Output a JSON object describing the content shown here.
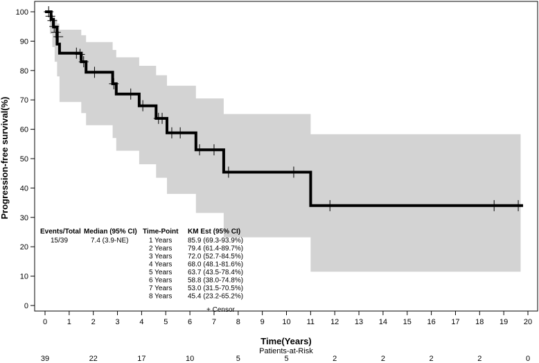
{
  "chart_data": {
    "type": "line",
    "subtype": "kaplan-meier",
    "xlabel": "Time(Years)",
    "ylabel": "Progression-free survival(%)",
    "xlim": [
      0,
      20
    ],
    "ylim": [
      0,
      100
    ],
    "x_ticks": [
      0,
      1,
      2,
      3,
      4,
      5,
      6,
      7,
      8,
      9,
      10,
      11,
      12,
      13,
      14,
      15,
      16,
      17,
      18,
      19,
      20
    ],
    "y_ticks": [
      0,
      10,
      20,
      30,
      40,
      50,
      60,
      70,
      80,
      90,
      100
    ],
    "grid": false,
    "survival_steps": [
      [
        0,
        100
      ],
      [
        0.25,
        97.4
      ],
      [
        0.35,
        94.8
      ],
      [
        0.5,
        89.0
      ],
      [
        0.6,
        85.9
      ],
      [
        1.5,
        83.0
      ],
      [
        1.7,
        79.4
      ],
      [
        2.8,
        75.5
      ],
      [
        2.95,
        72.0
      ],
      [
        3.9,
        68.0
      ],
      [
        4.6,
        63.7
      ],
      [
        5.05,
        58.8
      ],
      [
        6.25,
        53.0
      ],
      [
        7.4,
        45.4
      ],
      [
        11.0,
        34.0
      ],
      [
        19.8,
        34.0
      ]
    ],
    "ci_band": [
      [
        0,
        100,
        100
      ],
      [
        0.2,
        100,
        92.5
      ],
      [
        0.3,
        98.5,
        88
      ],
      [
        0.4,
        97.5,
        83
      ],
      [
        0.5,
        96,
        78
      ],
      [
        0.6,
        93.9,
        69.3
      ],
      [
        1.5,
        92,
        65.5
      ],
      [
        1.7,
        89.7,
        61.4
      ],
      [
        2.8,
        87,
        57
      ],
      [
        2.95,
        84.5,
        52.7
      ],
      [
        3.9,
        81.6,
        48.1
      ],
      [
        4.6,
        78.4,
        43.5
      ],
      [
        5.05,
        74.8,
        38.0
      ],
      [
        6.25,
        70.5,
        31.5
      ],
      [
        7.4,
        65.2,
        23.2
      ],
      [
        11.0,
        58.3,
        11.5
      ],
      [
        19.7,
        58.3,
        11.5
      ]
    ],
    "censor_times": [
      [
        0.15,
        100
      ],
      [
        0.22,
        98.5
      ],
      [
        0.3,
        97
      ],
      [
        0.38,
        95
      ],
      [
        0.45,
        93
      ],
      [
        0.55,
        91.5
      ],
      [
        1.3,
        85.9
      ],
      [
        1.45,
        85.5
      ],
      [
        1.6,
        83
      ],
      [
        2.05,
        79.4
      ],
      [
        2.85,
        75.5
      ],
      [
        3.55,
        72.0
      ],
      [
        4.05,
        68.0
      ],
      [
        4.7,
        63.7
      ],
      [
        4.85,
        63.7
      ],
      [
        5.25,
        58.8
      ],
      [
        5.6,
        58.8
      ],
      [
        6.4,
        53.0
      ],
      [
        7.0,
        53.0
      ],
      [
        7.6,
        45.4
      ],
      [
        10.3,
        45.4
      ],
      [
        11.8,
        34.0
      ],
      [
        18.6,
        34.0
      ],
      [
        19.6,
        34.0
      ]
    ],
    "annotation_table": {
      "headers": [
        "Events/Total",
        "Median (95% CI)",
        "Time-Point",
        "KM Est (95% CI)"
      ],
      "events_total": "15/39",
      "median": "7.4 (3.9-NE)",
      "rows": [
        {
          "time_point": "1 Years",
          "km_est": "85.9 (69.3-93.9%)"
        },
        {
          "time_point": "2 Years",
          "km_est": "79.4 (61.4-89.7%)"
        },
        {
          "time_point": "3 Years",
          "km_est": "72.0 (52.7-84.5%)"
        },
        {
          "time_point": "4 Years",
          "km_est": "68.0 (48.1-81.6%)"
        },
        {
          "time_point": "5 Years",
          "km_est": "63.7 (43.5-78.4%)"
        },
        {
          "time_point": "6 Years",
          "km_est": "58.8 (38.0-74.8%)"
        },
        {
          "time_point": "7 Years",
          "km_est": "53.0 (31.5-70.5%)"
        },
        {
          "time_point": "8 Years",
          "km_est": "45.4 (23.2-65.2%)"
        }
      ],
      "censor_legend": "+ Censor"
    },
    "patients_at_risk": {
      "title": "Patients-at-Risk",
      "times": [
        0,
        2,
        4,
        6,
        8,
        10,
        12,
        14,
        16,
        18,
        20
      ],
      "counts": [
        39,
        22,
        17,
        10,
        5,
        5,
        2,
        2,
        2,
        2,
        0
      ]
    },
    "colors": {
      "curve": "#000000",
      "ci_band": "#d3d3d3",
      "frame": "#000000"
    }
  }
}
